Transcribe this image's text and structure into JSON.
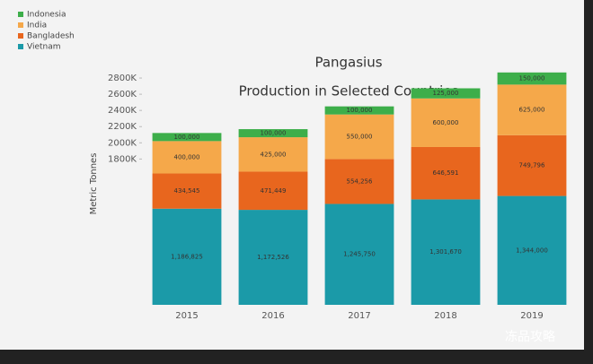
{
  "chart_data": {
    "type": "stacked_bar",
    "title": "Pangasius",
    "subtitle": "Production in Selected Countries",
    "y_label": "Metric Tonnes",
    "categories": [
      "2015",
      "2016",
      "2017",
      "2018",
      "2019"
    ],
    "series": [
      {
        "name": "Vietnam",
        "color": "#1b9aa8",
        "values": [
          1186825,
          1172526,
          1245750,
          1301670,
          1344000
        ],
        "value_labels": [
          "1,186,825",
          "1,172,526",
          "1,245,750",
          "1,301,670",
          "1,344,000"
        ]
      },
      {
        "name": "Bangladesh",
        "color": "#e8661e",
        "values": [
          434545,
          471449,
          554256,
          646591,
          749796
        ],
        "value_labels": [
          "434,545",
          "471,449",
          "554,256",
          "646,591",
          "749,796"
        ]
      },
      {
        "name": "India",
        "color": "#f5a84a",
        "values": [
          400000,
          425000,
          550000,
          600000,
          625000
        ],
        "value_labels": [
          "400,000",
          "425,000",
          "550,000",
          "600,000",
          "625,000"
        ]
      },
      {
        "name": "Indonesia",
        "color": "#3dae4a",
        "values": [
          100000,
          100000,
          100000,
          125000,
          150000
        ],
        "value_labels": [
          "100,000",
          "100,000",
          "100,000",
          "125,000",
          "150,000"
        ]
      }
    ],
    "ylim": [
      0,
      2900000
    ],
    "yticks": [
      {
        "value": 1800000,
        "label": "1800K"
      },
      {
        "value": 2000000,
        "label": "2000K"
      },
      {
        "value": 2200000,
        "label": "2200K"
      },
      {
        "value": 2400000,
        "label": "2400K"
      },
      {
        "value": 2600000,
        "label": "2600K"
      },
      {
        "value": 2800000,
        "label": "2800K"
      }
    ],
    "legend": "top-left",
    "watermark": "冻品攻略"
  }
}
